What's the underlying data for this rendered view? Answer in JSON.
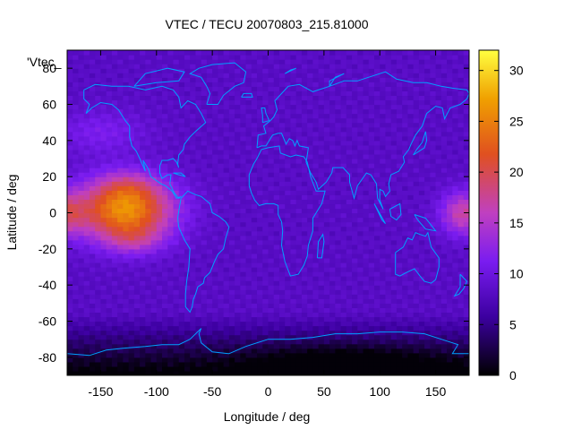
{
  "chart_data": {
    "type": "heatmap",
    "title": "VTEC / TECU 20070803_215.81000",
    "xlabel": "Longitude / deg",
    "ylabel": "Latitude / deg",
    "series_label": "'Vtec_",
    "xlim": [
      -180,
      180
    ],
    "ylim": [
      -90,
      90
    ],
    "x_ticks": [
      -150,
      -100,
      -50,
      0,
      50,
      100,
      150
    ],
    "y_ticks": [
      -80,
      -60,
      -40,
      -20,
      0,
      20,
      40,
      60,
      80
    ],
    "colorbar": {
      "range": [
        0,
        32
      ],
      "ticks": [
        0,
        5,
        10,
        15,
        20,
        25,
        30
      ]
    },
    "grid": false,
    "features": [
      {
        "name": "equatorial anomaly (Pacific)",
        "lon": -130,
        "lat": 2,
        "peak_tecu": 27
      },
      {
        "name": "equatorial anomaly (west Pacific)",
        "lon": 175,
        "lat": 0,
        "peak_tecu": 18
      },
      {
        "name": "southern polar minimum",
        "lon": 60,
        "lat": -82,
        "min_tecu": 1
      }
    ],
    "colors": {
      "palette": [
        "#000000",
        "#3c00a0",
        "#7a1cf0",
        "#c040c0",
        "#f07000",
        "#ffe000",
        "#ffff40"
      ],
      "coastline": "#00a0ff"
    }
  }
}
